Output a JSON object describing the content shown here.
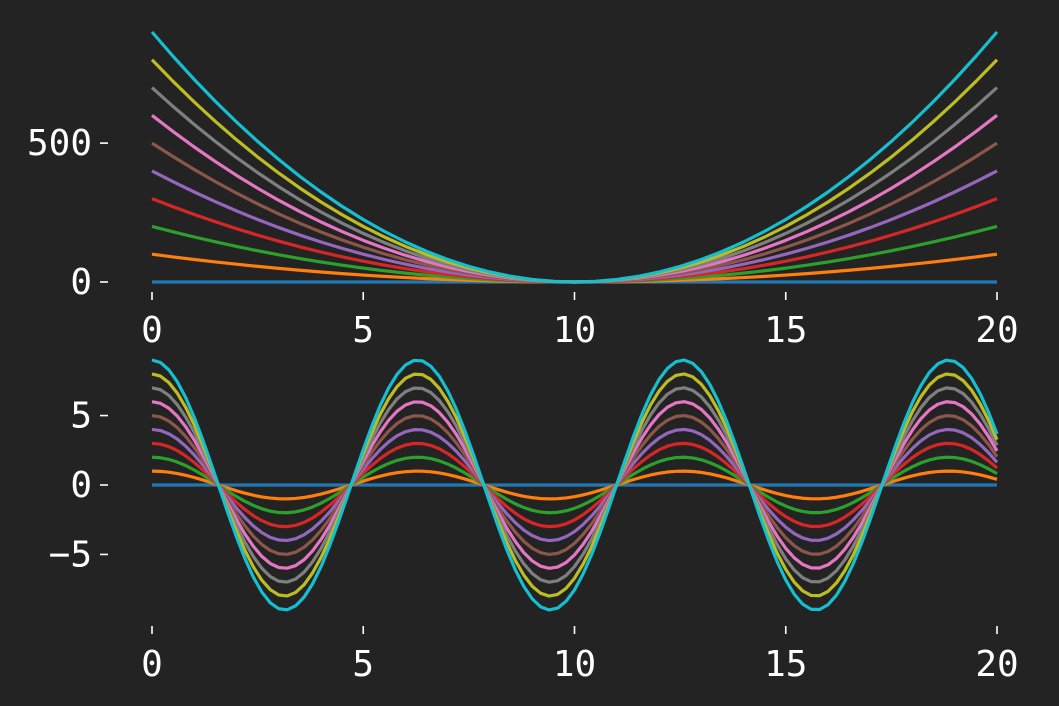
{
  "theme": {
    "background": "#232323",
    "text_color": "#ffffff",
    "tick_color": "#ffffff"
  },
  "chart_data": [
    {
      "type": "line",
      "function": "k * (x - 10)^2",
      "x": [
        0,
        0.5,
        1,
        1.5,
        2,
        2.5,
        3,
        3.5,
        4,
        4.5,
        5,
        5.5,
        6,
        6.5,
        7,
        7.5,
        8,
        8.5,
        9,
        9.5,
        10,
        10.5,
        11,
        11.5,
        12,
        12.5,
        13,
        13.5,
        14,
        14.5,
        15,
        15.5,
        16,
        16.5,
        17,
        17.5,
        18,
        18.5,
        19,
        19.5,
        20
      ],
      "series": [
        {
          "k": 0,
          "color": "#1f77b4"
        },
        {
          "k": 1,
          "color": "#ff7f0e"
        },
        {
          "k": 2,
          "color": "#2ca02c"
        },
        {
          "k": 3,
          "color": "#d62728"
        },
        {
          "k": 4,
          "color": "#9467bd"
        },
        {
          "k": 5,
          "color": "#8c564b"
        },
        {
          "k": 6,
          "color": "#e377c2"
        },
        {
          "k": 7,
          "color": "#7f7f7f"
        },
        {
          "k": 8,
          "color": "#bcbd22"
        },
        {
          "k": 9,
          "color": "#17becf"
        }
      ],
      "xlim": [
        0,
        20
      ],
      "ylim": [
        0,
        900
      ],
      "xticks": [
        0,
        5,
        10,
        15,
        20
      ],
      "xtick_labels": [
        "0",
        "5",
        "10",
        "15",
        "20"
      ],
      "yticks": [
        0,
        500
      ],
      "ytick_labels": [
        "0",
        "500"
      ],
      "title": "",
      "xlabel": "",
      "ylabel": "",
      "grid": false,
      "legend": "none"
    },
    {
      "type": "line",
      "function": "k * cos(x)",
      "x_range": [
        0,
        20
      ],
      "x_step": 0.2,
      "series": [
        {
          "k": 0,
          "color": "#1f77b4"
        },
        {
          "k": 1,
          "color": "#ff7f0e"
        },
        {
          "k": 2,
          "color": "#2ca02c"
        },
        {
          "k": 3,
          "color": "#d62728"
        },
        {
          "k": 4,
          "color": "#9467bd"
        },
        {
          "k": 5,
          "color": "#8c564b"
        },
        {
          "k": 6,
          "color": "#e377c2"
        },
        {
          "k": 7,
          "color": "#7f7f7f"
        },
        {
          "k": 8,
          "color": "#bcbd22"
        },
        {
          "k": 9,
          "color": "#17becf"
        }
      ],
      "xlim": [
        0,
        20
      ],
      "ylim": [
        -9,
        9
      ],
      "xticks": [
        0,
        5,
        10,
        15,
        20
      ],
      "xtick_labels": [
        "0",
        "5",
        "10",
        "15",
        "20"
      ],
      "yticks": [
        -5,
        0,
        5
      ],
      "ytick_labels": [
        "−5",
        "0",
        "5"
      ],
      "title": "",
      "xlabel": "",
      "ylabel": "",
      "grid": false,
      "legend": "none"
    }
  ]
}
